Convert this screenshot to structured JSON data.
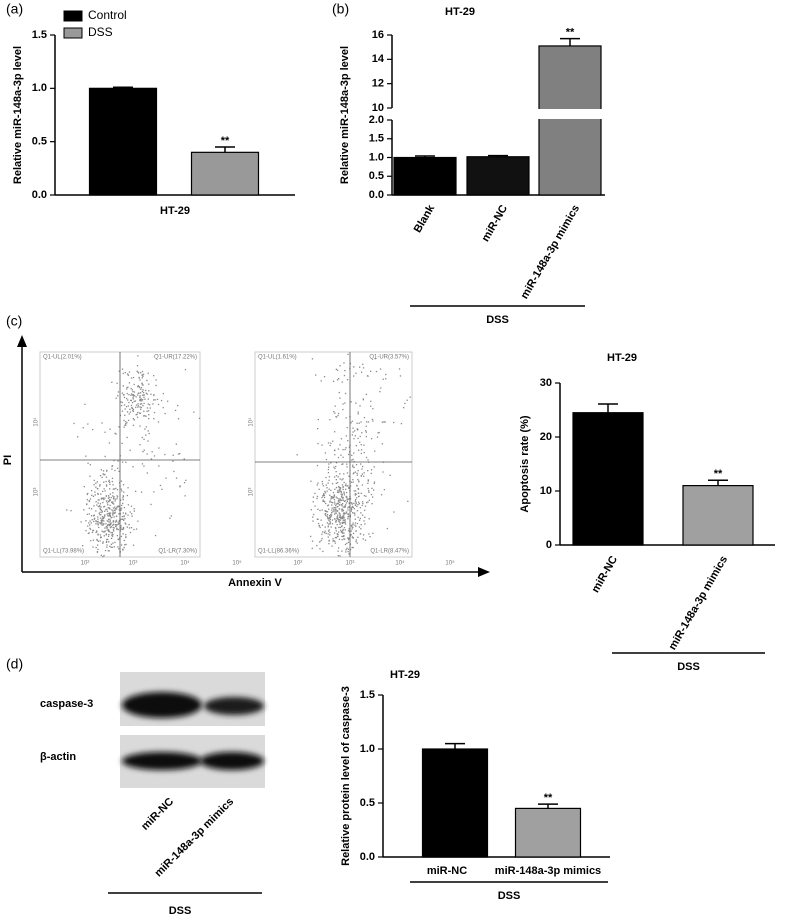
{
  "panel_labels": [
    "(a)",
    "(b)",
    "(c)",
    "(d)"
  ],
  "chart_data": [
    {
      "type": "bar",
      "y_label": "Relative miR-148a-3p level",
      "categories": [
        "HT-29"
      ],
      "series": [
        {
          "name": "Control",
          "color": "#000000",
          "values": [
            1.0
          ],
          "errors": [
            0.01
          ]
        },
        {
          "name": "DSS",
          "color": "#999999",
          "values": [
            0.4
          ],
          "errors": [
            0.05
          ],
          "significance": [
            "**"
          ]
        }
      ],
      "ylim": [
        0,
        1.5
      ],
      "yticks": [
        {
          "value": 0,
          "label": "0.0"
        },
        0.5,
        {
          "value": 1,
          "label": "1.0"
        },
        1.5
      ],
      "legend": "upper left"
    },
    {
      "type": "bar",
      "title": "HT-29",
      "y_label": "Relative miR-148a-3p level",
      "categories": [
        "Blank",
        "miR-NC",
        "miR-148a-3p mimics"
      ],
      "values": [
        1.0,
        1.02,
        15.1
      ],
      "errors": [
        0.04,
        0.03,
        0.6
      ],
      "colors": [
        "#000000",
        "#111111",
        "#808080"
      ],
      "significance": [
        null,
        null,
        "**"
      ],
      "group_label": "DSS",
      "ylim": [
        0,
        16
      ],
      "axis_break": [
        2,
        10
      ],
      "yticks": [
        {
          "value": 0,
          "label": "0.0"
        },
        0.5,
        {
          "value": 1,
          "label": "1.0"
        },
        1.5,
        {
          "value": 2,
          "label": "2.0"
        },
        10,
        12,
        14,
        16
      ]
    },
    {
      "type": "bar",
      "title": "HT-29",
      "y_label": "Apoptosis rate (%)",
      "categories": [
        "miR-NC",
        "miR-148a-3p mimics"
      ],
      "values": [
        24.5,
        11.0
      ],
      "errors": [
        1.6,
        1.0
      ],
      "colors": [
        "#000000",
        "#a0a0a0"
      ],
      "significance": [
        null,
        "**"
      ],
      "group_label": "DSS",
      "ylim": [
        0,
        30
      ],
      "yticks": [
        0,
        10,
        20,
        30
      ]
    },
    {
      "type": "bar",
      "title": "HT-29",
      "y_label": "Relative protein level of caspase-3",
      "categories": [
        "miR-NC",
        "miR-148a-3p mimics"
      ],
      "values": [
        1.0,
        0.45
      ],
      "errors": [
        0.05,
        0.04
      ],
      "colors": [
        "#000000",
        "#a0a0a0"
      ],
      "significance": [
        null,
        "**"
      ],
      "group_label": "DSS",
      "ylim": [
        0,
        1.5
      ],
      "yticks": [
        {
          "value": 0,
          "label": "0.0"
        },
        0.5,
        {
          "value": 1,
          "label": "1.0"
        },
        1.5
      ]
    }
  ],
  "flow_cytometry": {
    "y_label": "PI",
    "x_label": "Annexin V",
    "x_tick_labels": [
      "10²",
      "10³",
      "10⁴",
      "10⁵"
    ],
    "y_tick_labels": [
      "10³",
      "10⁴"
    ],
    "plots": [
      {
        "quadrants": [
          "Q1-UL(2.01%)",
          "Q1-UR(17.22%)",
          "Q1-LL(73.98%)",
          "Q1-LR(7.30%)"
        ]
      },
      {
        "quadrants": [
          "Q1-UL(1.61%)",
          "Q1-UR(3.57%)",
          "Q1-LL(86.36%)",
          "Q1-LR(8.47%)"
        ]
      }
    ]
  },
  "western_blot": {
    "rows": [
      "caspase-3",
      "β-actin"
    ],
    "lanes": [
      "miR-NC",
      "miR-148a-3p mimics"
    ],
    "group_label": "DSS"
  }
}
